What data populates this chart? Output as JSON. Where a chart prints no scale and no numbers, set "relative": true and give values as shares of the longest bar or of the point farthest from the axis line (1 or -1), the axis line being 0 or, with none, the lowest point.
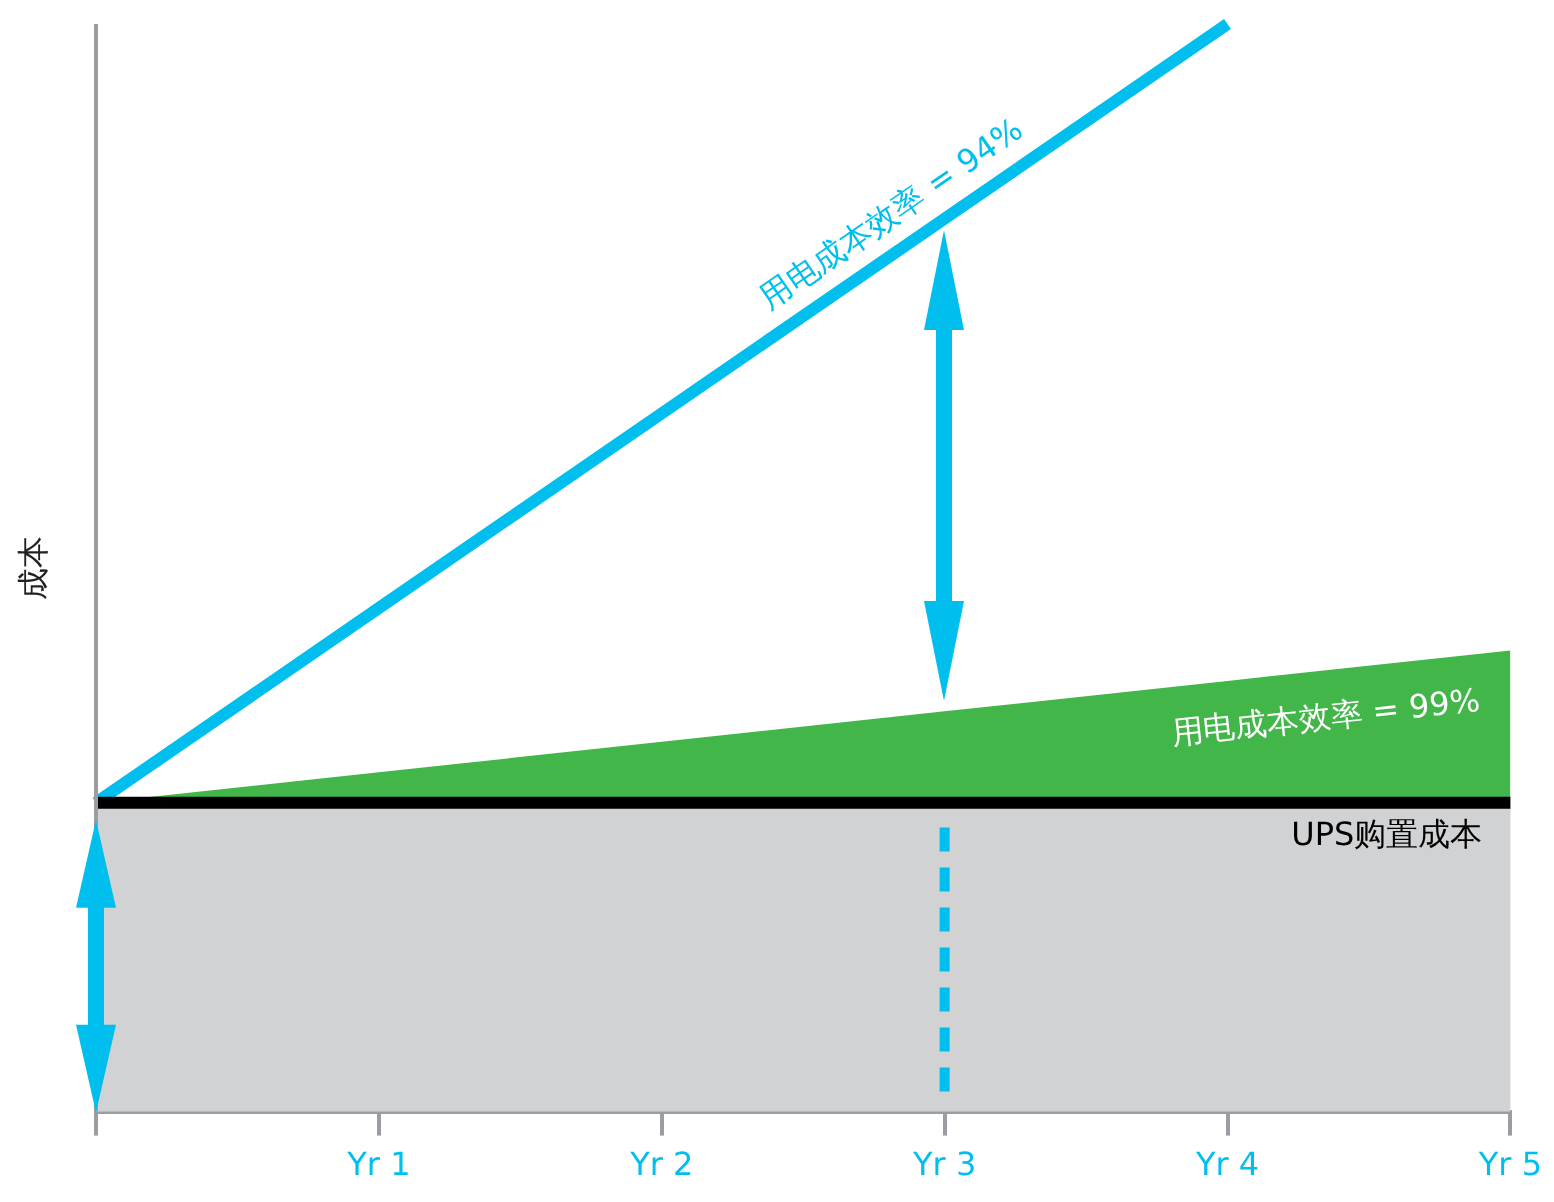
{
  "chart_data": {
    "type": "area",
    "ylabel": "成本",
    "relative": true,
    "categories": [
      null,
      "Yr 1",
      "Yr 2",
      "Yr 3",
      "Yr 4",
      "Yr 5"
    ],
    "series": [
      {
        "type": "line",
        "name": "UPS购置成本",
        "color": "#000000",
        "values": [
          0.284,
          0.284,
          0.284,
          0.284,
          0.284,
          0.284
        ]
      },
      {
        "name": "用电成本效率 = 99%",
        "color": "#43b649",
        "values": [
          0.284,
          0.312,
          0.34,
          0.368,
          0.396,
          0.424
        ]
      },
      {
        "type": "line",
        "name": "用电成本效率 = 94%",
        "color": "#00bfef",
        "values": [
          0.284,
          0.463,
          0.642,
          0.821,
          1,
          null
        ]
      }
    ],
    "bands": [
      {
        "axis": "y",
        "from": 0,
        "to": 0.284,
        "color": "#d1d2d4"
      }
    ],
    "ref_lines": [
      {
        "axis": "x",
        "value": "Yr 3",
        "color": "#00bfef",
        "line_style": "dashed"
      }
    ],
    "grid": false,
    "legend": false
  }
}
